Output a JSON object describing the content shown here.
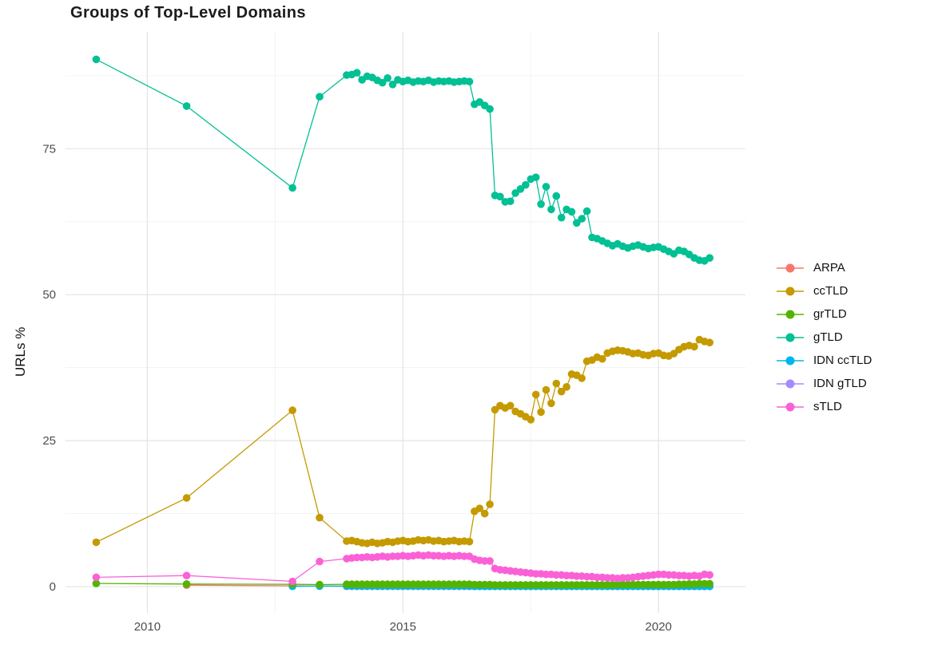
{
  "title": "Groups of Top-Level Domains",
  "y_axis": {
    "label": "URLs %"
  },
  "legend": {
    "items": [
      {
        "label": "ARPA",
        "color": "#F8766D"
      },
      {
        "label": "ccTLD",
        "color": "#C49A00"
      },
      {
        "label": "grTLD",
        "color": "#53B400"
      },
      {
        "label": "gTLD",
        "color": "#00C094"
      },
      {
        "label": "IDN ccTLD",
        "color": "#00B6EB"
      },
      {
        "label": "IDN gTLD",
        "color": "#A58AFF"
      },
      {
        "label": "sTLD",
        "color": "#FB61D7"
      }
    ]
  },
  "chart_data": {
    "type": "line",
    "title": "Groups of Top-Level Domains",
    "xlabel": "",
    "ylabel": "URLs %",
    "xlim": [
      2008.4,
      2021.7
    ],
    "ylim": [
      -4.5,
      95
    ],
    "x_ticks": [
      2010,
      2015,
      2020
    ],
    "x_minor_ticks": [
      2012.5,
      2017.5
    ],
    "y_ticks": [
      0,
      25,
      50,
      75
    ],
    "y_minor_ticks": [
      12.5,
      37.5,
      62.5,
      87.5
    ],
    "grid": true,
    "legend_position": "right",
    "point_markers": true,
    "series": [
      {
        "name": "ARPA",
        "color": "#F8766D",
        "sparse": [
          [
            2010.77,
            0.25
          ],
          [
            2012.84,
            0.15
          ],
          [
            2013.37,
            0.1
          ]
        ],
        "dense": {
          "start": 2013.9,
          "step": 0.1,
          "values": [
            0.05,
            0.05,
            0.05,
            0.05,
            0.05,
            0.05,
            0.05,
            0.05,
            0.05,
            0.05,
            0.05,
            0.05,
            0.05,
            0.05,
            0.05,
            0.05,
            0.05,
            0.05,
            0.05,
            0.05,
            0.05,
            0.05,
            0.05,
            0.05,
            0.05,
            0.05,
            0.05,
            0.05,
            0.05,
            0.05,
            0.05,
            0.05,
            0.05,
            0.05,
            0.05,
            0.05,
            0.05,
            0.05,
            0.05,
            0.05,
            0.05,
            0.05,
            0.05,
            0.05,
            0.05,
            0.05,
            0.05,
            0.05,
            0.05,
            0.05,
            0.05,
            0.05,
            0.05,
            0.05,
            0.05,
            0.05,
            0.05,
            0.05,
            0.05,
            0.05,
            0.05,
            0.05,
            0.05,
            0.05,
            0.05,
            0.05,
            0.05,
            0.05,
            0.05,
            0.05,
            0.05,
            0.05
          ]
        }
      },
      {
        "name": "ccTLD",
        "color": "#C49A00",
        "sparse": [
          [
            2009.0,
            7.6
          ],
          [
            2010.77,
            15.2
          ],
          [
            2012.84,
            30.2
          ],
          [
            2013.37,
            11.8
          ]
        ],
        "dense": {
          "start": 2013.9,
          "step": 0.1,
          "values": [
            7.8,
            7.9,
            7.7,
            7.5,
            7.4,
            7.6,
            7.4,
            7.5,
            7.7,
            7.6,
            7.8,
            7.9,
            7.7,
            7.8,
            8.0,
            7.9,
            8.0,
            7.8,
            7.9,
            7.7,
            7.8,
            7.9,
            7.7,
            7.8,
            7.7,
            12.9,
            13.4,
            12.5,
            14.1,
            30.3,
            31.0,
            30.6,
            31.0,
            30.0,
            29.6,
            29.1,
            28.6,
            32.9,
            29.9,
            33.7,
            31.4,
            34.8,
            33.4,
            34.2,
            36.4,
            36.2,
            35.7,
            38.6,
            38.8,
            39.3,
            39.0,
            40.0,
            40.3,
            40.5,
            40.4,
            40.2,
            39.9,
            40.0,
            39.7,
            39.6,
            39.9,
            40.0,
            39.6,
            39.5,
            39.9,
            40.6,
            41.1,
            41.3,
            41.1,
            42.3,
            42.0,
            41.8
          ]
        }
      },
      {
        "name": "grTLD",
        "color": "#53B400",
        "sparse": [
          [
            2009.0,
            0.55
          ],
          [
            2010.77,
            0.45
          ],
          [
            2012.84,
            0.4
          ],
          [
            2013.37,
            0.35
          ]
        ],
        "dense": {
          "start": 2013.9,
          "step": 0.1,
          "values": [
            0.4,
            0.4,
            0.4,
            0.4,
            0.4,
            0.4,
            0.4,
            0.4,
            0.4,
            0.4,
            0.4,
            0.4,
            0.4,
            0.4,
            0.4,
            0.4,
            0.4,
            0.4,
            0.4,
            0.4,
            0.4,
            0.4,
            0.4,
            0.4,
            0.4,
            0.35,
            0.35,
            0.35,
            0.35,
            0.3,
            0.3,
            0.3,
            0.3,
            0.3,
            0.3,
            0.3,
            0.3,
            0.3,
            0.3,
            0.3,
            0.3,
            0.3,
            0.3,
            0.3,
            0.3,
            0.3,
            0.3,
            0.3,
            0.3,
            0.3,
            0.3,
            0.3,
            0.3,
            0.35,
            0.35,
            0.35,
            0.35,
            0.35,
            0.35,
            0.35,
            0.35,
            0.35,
            0.35,
            0.35,
            0.35,
            0.4,
            0.4,
            0.45,
            0.45,
            0.5,
            0.5,
            0.5
          ]
        }
      },
      {
        "name": "gTLD",
        "color": "#00C094",
        "sparse": [
          [
            2009.0,
            90.3
          ],
          [
            2010.77,
            82.3
          ],
          [
            2012.84,
            68.3
          ],
          [
            2013.37,
            83.9
          ]
        ],
        "dense": {
          "start": 2013.9,
          "step": 0.1,
          "values": [
            87.6,
            87.7,
            88.0,
            86.8,
            87.4,
            87.2,
            86.7,
            86.3,
            87.1,
            86.0,
            86.8,
            86.5,
            86.7,
            86.4,
            86.6,
            86.5,
            86.7,
            86.4,
            86.6,
            86.5,
            86.6,
            86.4,
            86.5,
            86.6,
            86.5,
            82.6,
            83.0,
            82.4,
            81.8,
            67.0,
            66.8,
            65.9,
            66.0,
            67.4,
            68.1,
            68.8,
            69.8,
            70.1,
            65.5,
            68.5,
            64.6,
            66.9,
            63.2,
            64.6,
            64.2,
            62.3,
            63.0,
            64.3,
            59.8,
            59.6,
            59.2,
            58.8,
            58.4,
            58.7,
            58.3,
            58.0,
            58.3,
            58.5,
            58.2,
            57.9,
            58.1,
            58.2,
            57.8,
            57.4,
            57.0,
            57.6,
            57.4,
            56.9,
            56.3,
            55.9,
            55.8,
            56.3
          ]
        }
      },
      {
        "name": "IDN ccTLD",
        "color": "#00B6EB",
        "sparse": [
          [
            2012.84,
            0.05
          ],
          [
            2013.37,
            0.1
          ]
        ],
        "dense": {
          "start": 2013.9,
          "step": 0.1,
          "values": [
            0.1,
            0.1,
            0.1,
            0.1,
            0.1,
            0.1,
            0.1,
            0.1,
            0.1,
            0.1,
            0.1,
            0.1,
            0.1,
            0.1,
            0.1,
            0.1,
            0.1,
            0.1,
            0.1,
            0.1,
            0.1,
            0.1,
            0.1,
            0.1,
            0.1,
            0.05,
            0.05,
            0.05,
            0.05,
            0.05,
            0.05,
            0.05,
            0.05,
            0.05,
            0.05,
            0.05,
            0.05,
            0.05,
            0.05,
            0.05,
            0.05,
            0.05,
            0.05,
            0.05,
            0.05,
            0.05,
            0.05,
            0.05,
            0.05,
            0.05,
            0.05,
            0.05,
            0.05,
            0.05,
            0.05,
            0.05,
            0.05,
            0.05,
            0.05,
            0.05,
            0.05,
            0.05,
            0.05,
            0.05,
            0.05,
            0.05,
            0.05,
            0.05,
            0.05,
            0.05,
            0.05,
            0.05
          ]
        }
      },
      {
        "name": "IDN gTLD",
        "color": "#A58AFF",
        "sparse": [],
        "dense": {
          "start": 2016.3,
          "step": 0.1,
          "values": [
            0.05,
            0.05,
            0.05,
            0.05,
            0.05,
            0.05,
            0.05,
            0.05,
            0.05,
            0.05,
            0.05,
            0.05,
            0.05,
            0.05,
            0.05,
            0.05,
            0.05,
            0.05,
            0.05,
            0.05,
            0.05,
            0.05,
            0.05,
            0.05,
            0.05,
            0.05,
            0.05,
            0.05,
            0.05,
            0.05,
            0.05,
            0.05,
            0.05,
            0.05,
            0.05,
            0.05,
            0.05,
            0.05,
            0.05,
            0.05,
            0.05,
            0.05,
            0.05,
            0.05,
            0.05,
            0.05,
            0.05,
            0.05
          ]
        }
      },
      {
        "name": "sTLD",
        "color": "#FB61D7",
        "sparse": [
          [
            2009.0,
            1.6
          ],
          [
            2010.77,
            1.9
          ],
          [
            2012.84,
            0.9
          ],
          [
            2013.37,
            4.3
          ]
        ],
        "dense": {
          "start": 2013.9,
          "step": 0.1,
          "values": [
            4.8,
            4.9,
            5.0,
            5.0,
            5.1,
            5.0,
            5.1,
            5.2,
            5.1,
            5.2,
            5.2,
            5.3,
            5.2,
            5.3,
            5.4,
            5.3,
            5.4,
            5.3,
            5.3,
            5.2,
            5.3,
            5.2,
            5.3,
            5.2,
            5.2,
            4.7,
            4.5,
            4.4,
            4.4,
            3.1,
            2.9,
            2.8,
            2.7,
            2.6,
            2.5,
            2.4,
            2.3,
            2.2,
            2.2,
            2.1,
            2.1,
            2.0,
            2.0,
            1.9,
            1.9,
            1.8,
            1.8,
            1.7,
            1.7,
            1.6,
            1.6,
            1.5,
            1.5,
            1.4,
            1.5,
            1.5,
            1.6,
            1.7,
            1.8,
            1.9,
            2.0,
            2.1,
            2.1,
            2.0,
            2.0,
            1.9,
            1.9,
            1.8,
            1.9,
            1.8,
            2.1,
            2.0
          ]
        }
      }
    ]
  }
}
